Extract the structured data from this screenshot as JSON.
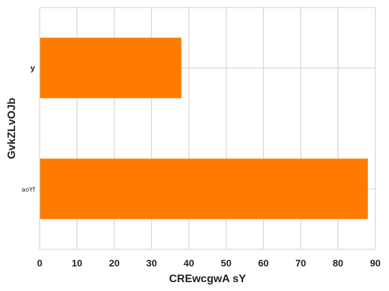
{
  "chart_data": {
    "type": "bar",
    "orientation": "horizontal",
    "categories": [
      "aoYf",
      "y"
    ],
    "values": [
      88,
      38
    ],
    "xlabel": "CREwcgwA sY",
    "ylabel": "GvkZLvOJb",
    "xlim": [
      0,
      90
    ],
    "xticks": [
      "0",
      "10",
      "20",
      "30",
      "40",
      "50",
      "60",
      "70",
      "80",
      "90"
    ],
    "grid": true,
    "bar_color": "#ff7b00",
    "grid_color": "#cccccc"
  }
}
